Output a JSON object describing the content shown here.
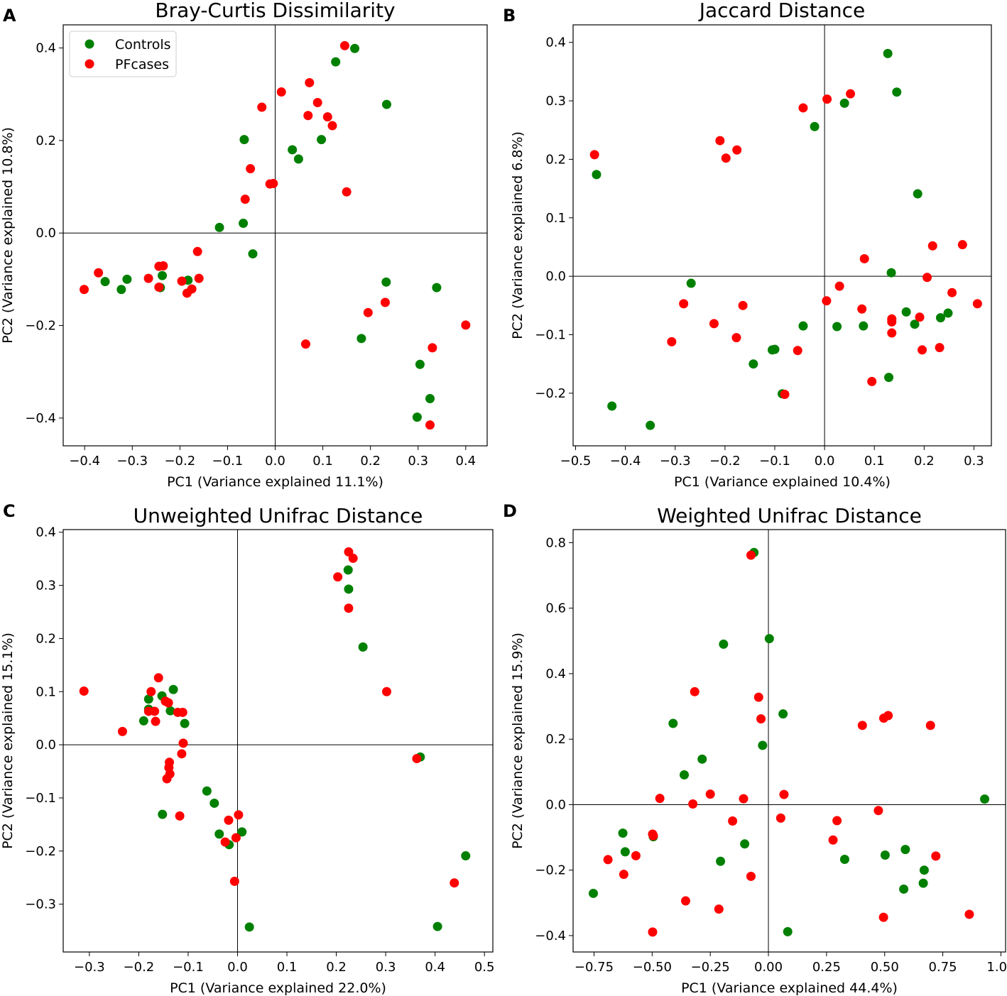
{
  "colors": {
    "controls": "#008000",
    "pfcases": "#ff0000",
    "axis": "#000000"
  },
  "chart_data": [
    {
      "type": "scatter",
      "panel_label": "A",
      "title": "Bray-Curtis Dissimilarity",
      "xlabel": "PC1 (Variance explained 11.1%)",
      "ylabel": "PC2 (Variance explained 10.8%)",
      "xlim": [
        -0.445,
        0.445
      ],
      "ylim": [
        -0.46,
        0.45
      ],
      "xticks": [
        -0.4,
        -0.3,
        -0.2,
        -0.1,
        0.0,
        0.1,
        0.2,
        0.3,
        0.4
      ],
      "xtick_labels": [
        "−0.4",
        "−0.3",
        "−0.2",
        "−0.1",
        "0.0",
        "0.1",
        "0.2",
        "0.3",
        "0.4"
      ],
      "yticks": [
        -0.4,
        -0.2,
        0.0,
        0.2,
        0.4
      ],
      "ytick_labels": [
        "−0.4",
        "−0.2",
        "0.0",
        "0.2",
        "0.4"
      ],
      "legend": {
        "position": "top-left",
        "entries": [
          "Controls",
          "PFcases"
        ]
      },
      "series": [
        {
          "name": "Controls",
          "points": [
            [
              0.167,
              0.399
            ],
            [
              0.127,
              0.37
            ],
            [
              0.234,
              0.278
            ],
            [
              -0.065,
              0.202
            ],
            [
              0.036,
              0.18
            ],
            [
              0.097,
              0.202
            ],
            [
              0.049,
              0.16
            ],
            [
              -0.117,
              0.012
            ],
            [
              -0.067,
              0.021
            ],
            [
              -0.047,
              -0.045
            ],
            [
              -0.357,
              -0.105
            ],
            [
              -0.311,
              -0.1
            ],
            [
              -0.323,
              -0.122
            ],
            [
              -0.237,
              -0.092
            ],
            [
              -0.241,
              -0.118
            ],
            [
              -0.183,
              -0.102
            ],
            [
              0.233,
              -0.106
            ],
            [
              0.339,
              -0.118
            ],
            [
              0.181,
              -0.228
            ],
            [
              0.304,
              -0.284
            ],
            [
              0.325,
              -0.358
            ],
            [
              0.298,
              -0.398
            ]
          ]
        },
        {
          "name": "PFcases",
          "points": [
            [
              0.146,
              0.405
            ],
            [
              0.013,
              0.305
            ],
            [
              0.072,
              0.325
            ],
            [
              -0.028,
              0.272
            ],
            [
              0.089,
              0.282
            ],
            [
              0.069,
              0.254
            ],
            [
              0.11,
              0.251
            ],
            [
              0.12,
              0.232
            ],
            [
              -0.052,
              0.139
            ],
            [
              -0.011,
              0.106
            ],
            [
              -0.004,
              0.107
            ],
            [
              -0.063,
              0.073
            ],
            [
              0.15,
              0.089
            ],
            [
              -0.163,
              -0.04
            ],
            [
              -0.371,
              -0.086
            ],
            [
              -0.401,
              -0.122
            ],
            [
              -0.266,
              -0.098
            ],
            [
              -0.244,
              -0.072
            ],
            [
              -0.235,
              -0.071
            ],
            [
              -0.244,
              -0.117
            ],
            [
              -0.16,
              -0.098
            ],
            [
              -0.196,
              -0.104
            ],
            [
              -0.175,
              -0.121
            ],
            [
              -0.185,
              -0.13
            ],
            [
              0.195,
              -0.172
            ],
            [
              0.231,
              -0.15
            ],
            [
              0.064,
              -0.24
            ],
            [
              0.4,
              -0.199
            ],
            [
              0.33,
              -0.248
            ],
            [
              0.325,
              -0.415
            ]
          ]
        }
      ]
    },
    {
      "type": "scatter",
      "panel_label": "B",
      "title": "Jaccard Distance",
      "xlabel": "PC1 (Variance explained 10.4%)",
      "ylabel": "PC2 (Variance explained 6.8%)",
      "xlim": [
        -0.505,
        0.335
      ],
      "ylim": [
        -0.29,
        0.43
      ],
      "xticks": [
        -0.5,
        -0.4,
        -0.3,
        -0.2,
        -0.1,
        0.0,
        0.1,
        0.2,
        0.3
      ],
      "xtick_labels": [
        "−0.5",
        "−0.4",
        "−0.3",
        "−0.2",
        "−0.1",
        "0.0",
        "0.1",
        "0.2",
        "0.3"
      ],
      "yticks": [
        -0.2,
        -0.1,
        0.0,
        0.1,
        0.2,
        0.3,
        0.4
      ],
      "ytick_labels": [
        "−0.2",
        "−0.1",
        "0.0",
        "0.1",
        "0.2",
        "0.3",
        "0.4"
      ],
      "series": [
        {
          "name": "Controls",
          "points": [
            [
              0.127,
              0.381
            ],
            [
              0.145,
              0.315
            ],
            [
              0.04,
              0.296
            ],
            [
              -0.02,
              0.256
            ],
            [
              0.187,
              0.141
            ],
            [
              -0.458,
              0.174
            ],
            [
              -0.268,
              -0.012
            ],
            [
              0.134,
              0.006
            ],
            [
              -0.043,
              -0.085
            ],
            [
              -0.1,
              -0.125
            ],
            [
              -0.105,
              -0.126
            ],
            [
              0.025,
              -0.086
            ],
            [
              0.078,
              -0.085
            ],
            [
              0.164,
              -0.061
            ],
            [
              0.181,
              -0.082
            ],
            [
              0.233,
              -0.071
            ],
            [
              0.248,
              -0.063
            ],
            [
              -0.143,
              -0.15
            ],
            [
              0.129,
              -0.173
            ],
            [
              -0.085,
              -0.201
            ],
            [
              -0.427,
              -0.222
            ],
            [
              -0.35,
              -0.255
            ]
          ]
        },
        {
          "name": "PFcases",
          "points": [
            [
              -0.462,
              0.208
            ],
            [
              -0.21,
              0.232
            ],
            [
              -0.198,
              0.202
            ],
            [
              -0.176,
              0.216
            ],
            [
              -0.043,
              0.288
            ],
            [
              0.005,
              0.303
            ],
            [
              0.052,
              0.312
            ],
            [
              0.08,
              0.03
            ],
            [
              0.217,
              0.052
            ],
            [
              0.277,
              0.054
            ],
            [
              0.206,
              -0.002
            ],
            [
              0.03,
              -0.017
            ],
            [
              0.004,
              -0.042
            ],
            [
              0.075,
              -0.056
            ],
            [
              0.135,
              -0.073
            ],
            [
              0.135,
              -0.078
            ],
            [
              0.191,
              -0.07
            ],
            [
              0.256,
              -0.028
            ],
            [
              0.307,
              -0.047
            ],
            [
              -0.283,
              -0.047
            ],
            [
              -0.222,
              -0.081
            ],
            [
              -0.164,
              -0.05
            ],
            [
              -0.177,
              -0.105
            ],
            [
              -0.307,
              -0.112
            ],
            [
              -0.054,
              -0.127
            ],
            [
              0.135,
              -0.097
            ],
            [
              0.196,
              -0.126
            ],
            [
              0.231,
              -0.122
            ],
            [
              0.095,
              -0.18
            ],
            [
              -0.08,
              -0.202
            ]
          ]
        }
      ]
    },
    {
      "type": "scatter",
      "panel_label": "C",
      "title": "Unweighted Unifrac Distance",
      "xlabel": "PC1 (Variance explained 22.0%)",
      "ylabel": "PC2 (Variance explained 15.1%)",
      "xlim": [
        -0.353,
        0.517
      ],
      "ylim": [
        -0.39,
        0.405
      ],
      "xticks": [
        -0.3,
        -0.2,
        -0.1,
        0.0,
        0.1,
        0.2,
        0.3,
        0.4,
        0.5
      ],
      "xtick_labels": [
        "−0.3",
        "−0.2",
        "−0.1",
        "0.0",
        "0.1",
        "0.2",
        "0.3",
        "0.4",
        "0.5"
      ],
      "yticks": [
        -0.3,
        -0.2,
        -0.1,
        0.0,
        0.1,
        0.2,
        0.3,
        0.4
      ],
      "ytick_labels": [
        "−0.3",
        "−0.2",
        "−0.1",
        "0.0",
        "0.1",
        "0.2",
        "0.3",
        "0.4"
      ],
      "series": [
        {
          "name": "Controls",
          "points": [
            [
              0.224,
              0.329
            ],
            [
              0.225,
              0.293
            ],
            [
              0.254,
              0.184
            ],
            [
              -0.18,
              0.086
            ],
            [
              -0.153,
              0.092
            ],
            [
              -0.13,
              0.104
            ],
            [
              -0.18,
              0.067
            ],
            [
              -0.136,
              0.064
            ],
            [
              -0.19,
              0.045
            ],
            [
              -0.107,
              0.04
            ],
            [
              0.37,
              -0.023
            ],
            [
              -0.152,
              -0.131
            ],
            [
              -0.062,
              -0.087
            ],
            [
              -0.047,
              -0.11
            ],
            [
              -0.037,
              -0.168
            ],
            [
              -0.017,
              -0.188
            ],
            [
              0.009,
              -0.164
            ],
            [
              0.462,
              -0.209
            ],
            [
              0.405,
              -0.342
            ],
            [
              0.024,
              -0.343
            ]
          ]
        },
        {
          "name": "PFcases",
          "points": [
            [
              0.225,
              0.363
            ],
            [
              0.234,
              0.351
            ],
            [
              0.203,
              0.316
            ],
            [
              0.225,
              0.257
            ],
            [
              0.302,
              0.1
            ],
            [
              -0.311,
              0.101
            ],
            [
              -0.16,
              0.126
            ],
            [
              -0.175,
              0.1
            ],
            [
              -0.146,
              0.082
            ],
            [
              -0.14,
              0.079
            ],
            [
              -0.18,
              0.063
            ],
            [
              -0.168,
              0.063
            ],
            [
              -0.121,
              0.061
            ],
            [
              -0.111,
              0.061
            ],
            [
              -0.166,
              0.044
            ],
            [
              -0.233,
              0.025
            ],
            [
              -0.11,
              0.003
            ],
            [
              -0.113,
              -0.017
            ],
            [
              -0.138,
              -0.033
            ],
            [
              -0.139,
              -0.043
            ],
            [
              -0.137,
              -0.055
            ],
            [
              -0.143,
              -0.064
            ],
            [
              0.363,
              -0.026
            ],
            [
              -0.117,
              -0.134
            ],
            [
              -0.018,
              -0.142
            ],
            [
              0.002,
              -0.132
            ],
            [
              -0.025,
              -0.183
            ],
            [
              -0.003,
              -0.175
            ],
            [
              0.439,
              -0.26
            ],
            [
              -0.006,
              -0.257
            ]
          ]
        }
      ]
    },
    {
      "type": "scatter",
      "panel_label": "D",
      "title": "Weighted Unifrac Distance",
      "xlabel": "PC1 (Variance explained 44.4%)",
      "ylabel": "PC2 (Variance explained 15.9%)",
      "xlim": [
        -0.84,
        1.02
      ],
      "ylim": [
        -0.45,
        0.84
      ],
      "xticks": [
        -0.75,
        -0.5,
        -0.25,
        0.0,
        0.25,
        0.5,
        0.75,
        1.0
      ],
      "xtick_labels": [
        "−0.75",
        "−0.50",
        "−0.25",
        "0.00",
        "0.25",
        "0.50",
        "0.75",
        "1.00"
      ],
      "yticks": [
        -0.4,
        -0.2,
        0.0,
        0.2,
        0.4,
        0.6,
        0.8
      ],
      "ytick_labels": [
        "−0.4",
        "−0.2",
        "0.0",
        "0.2",
        "0.4",
        "0.6",
        "0.8"
      ],
      "series": [
        {
          "name": "Controls",
          "points": [
            [
              -0.062,
              0.77
            ],
            [
              0.004,
              0.507
            ],
            [
              -0.193,
              0.49
            ],
            [
              0.063,
              0.277
            ],
            [
              -0.41,
              0.248
            ],
            [
              -0.025,
              0.181
            ],
            [
              -0.285,
              0.139
            ],
            [
              -0.362,
              0.091
            ],
            [
              0.93,
              0.017
            ],
            [
              -0.626,
              -0.087
            ],
            [
              -0.616,
              -0.144
            ],
            [
              -0.495,
              -0.098
            ],
            [
              -0.102,
              -0.12
            ],
            [
              -0.206,
              -0.173
            ],
            [
              0.328,
              -0.167
            ],
            [
              0.502,
              -0.154
            ],
            [
              0.589,
              -0.137
            ],
            [
              0.67,
              -0.2
            ],
            [
              0.666,
              -0.24
            ],
            [
              0.582,
              -0.258
            ],
            [
              -0.753,
              -0.271
            ],
            [
              0.083,
              -0.388
            ]
          ]
        },
        {
          "name": "PFcases",
          "points": [
            [
              -0.075,
              0.762
            ],
            [
              -0.317,
              0.345
            ],
            [
              -0.042,
              0.328
            ],
            [
              -0.032,
              0.262
            ],
            [
              0.404,
              0.242
            ],
            [
              0.496,
              0.264
            ],
            [
              0.515,
              0.272
            ],
            [
              0.697,
              0.242
            ],
            [
              -0.467,
              0.019
            ],
            [
              -0.25,
              0.032
            ],
            [
              -0.325,
              0.002
            ],
            [
              -0.107,
              0.018
            ],
            [
              0.067,
              0.031
            ],
            [
              -0.154,
              -0.05
            ],
            [
              0.053,
              -0.041
            ],
            [
              0.473,
              -0.018
            ],
            [
              0.295,
              -0.049
            ],
            [
              0.278,
              -0.108
            ],
            [
              -0.498,
              -0.09
            ],
            [
              -0.495,
              -0.095
            ],
            [
              -0.69,
              -0.168
            ],
            [
              -0.57,
              -0.156
            ],
            [
              -0.622,
              -0.213
            ],
            [
              -0.075,
              -0.219
            ],
            [
              0.72,
              -0.157
            ],
            [
              -0.356,
              -0.294
            ],
            [
              -0.213,
              -0.319
            ],
            [
              0.495,
              -0.344
            ],
            [
              0.864,
              -0.335
            ],
            [
              -0.498,
              -0.389
            ]
          ]
        }
      ]
    }
  ]
}
